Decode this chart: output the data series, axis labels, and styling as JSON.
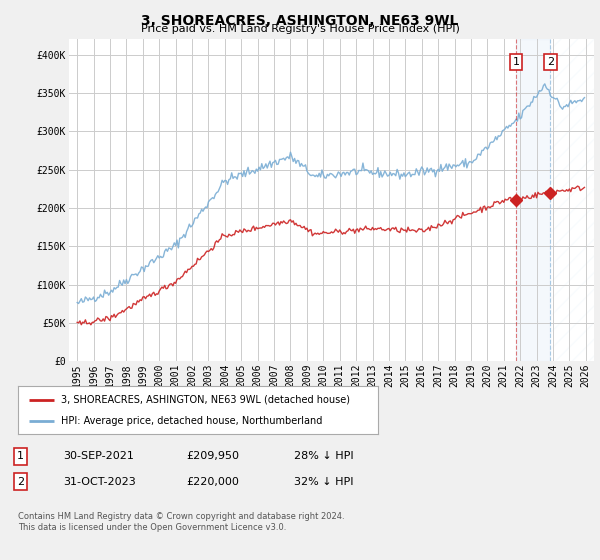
{
  "title": "3, SHOREACRES, ASHINGTON, NE63 9WL",
  "subtitle": "Price paid vs. HM Land Registry's House Price Index (HPI)",
  "ylim": [
    0,
    420000
  ],
  "yticks": [
    0,
    50000,
    100000,
    150000,
    200000,
    250000,
    300000,
    350000,
    400000
  ],
  "ytick_labels": [
    "£0",
    "£50K",
    "£100K",
    "£150K",
    "£200K",
    "£250K",
    "£300K",
    "£350K",
    "£400K"
  ],
  "background_color": "#f0f0f0",
  "plot_bg_color": "#ffffff",
  "grid_color": "#cccccc",
  "hpi_color": "#7aadd4",
  "price_color": "#cc2222",
  "sale1_date": 2021.75,
  "sale1_price": 209950,
  "sale2_date": 2023.83,
  "sale2_price": 220000,
  "legend_price_label": "3, SHOREACRES, ASHINGTON, NE63 9WL (detached house)",
  "legend_hpi_label": "HPI: Average price, detached house, Northumberland",
  "table_row1": [
    "1",
    "30-SEP-2021",
    "£209,950",
    "28% ↓ HPI"
  ],
  "table_row2": [
    "2",
    "31-OCT-2023",
    "£220,000",
    "32% ↓ HPI"
  ],
  "footer": "Contains HM Land Registry data © Crown copyright and database right 2024.\nThis data is licensed under the Open Government Licence v3.0.",
  "title_fontsize": 10,
  "subtitle_fontsize": 8,
  "tick_fontsize": 7,
  "label_fontsize": 7.5,
  "xlim_left": 1994.5,
  "xlim_right": 2026.5
}
